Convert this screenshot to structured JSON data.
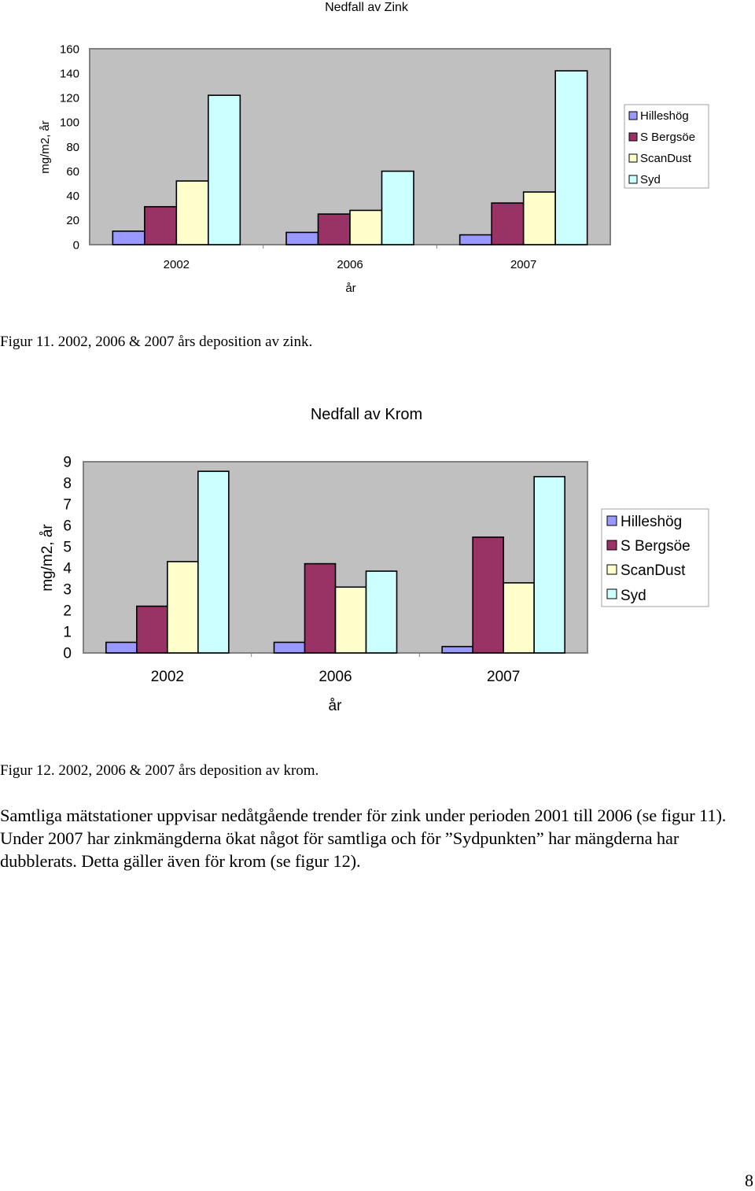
{
  "colors": {
    "series": [
      "#9999ff",
      "#993366",
      "#ffffcc",
      "#ccffff"
    ],
    "plot_background": "#c0c0c0"
  },
  "chart_data": [
    {
      "type": "bar",
      "title": "Nedfall av Zink",
      "xlabel": "år",
      "ylabel": "mg/m2, år",
      "categories": [
        "2002",
        "2006",
        "2007"
      ],
      "ylim": [
        0,
        160
      ],
      "yticks": [
        "0",
        "20",
        "40",
        "60",
        "80",
        "100",
        "120",
        "140",
        "160"
      ],
      "grid": false,
      "legend": "right",
      "series": [
        {
          "name": "Hilleshög",
          "values": [
            11,
            10,
            8
          ]
        },
        {
          "name": "S Bergsöe",
          "values": [
            31,
            25,
            34
          ]
        },
        {
          "name": "ScanDust",
          "values": [
            52,
            28,
            43
          ]
        },
        {
          "name": "Syd",
          "values": [
            122,
            60,
            142
          ]
        }
      ]
    },
    {
      "type": "bar",
      "title": "Nedfall av Krom",
      "xlabel": "år",
      "ylabel": "mg/m2, år",
      "categories": [
        "2002",
        "2006",
        "2007"
      ],
      "ylim": [
        0,
        9
      ],
      "yticks": [
        "0",
        "1",
        "2",
        "3",
        "4",
        "5",
        "6",
        "7",
        "8",
        "9"
      ],
      "grid": false,
      "legend": "right",
      "series": [
        {
          "name": "Hilleshög",
          "values": [
            0.5,
            0.5,
            0.3
          ]
        },
        {
          "name": "S Bergsöe",
          "values": [
            2.2,
            4.2,
            5.45
          ]
        },
        {
          "name": "ScanDust",
          "values": [
            4.3,
            3.1,
            3.3
          ]
        },
        {
          "name": "Syd",
          "values": [
            8.55,
            3.85,
            8.3
          ]
        }
      ]
    }
  ],
  "captions": {
    "fig11": "Figur 11. 2002, 2006 & 2007 års deposition av zink.",
    "fig12": "Figur 12. 2002, 2006 & 2007 års deposition av krom."
  },
  "paragraph": "Samtliga mätstationer uppvisar nedåtgående trender för zink under perioden 2001 till 2006 (se figur 11). Under 2007 har zinkmängderna ökat något för samtliga och för ”Sydpunkten” har mängderna har dubblerats. Detta gäller även för krom (se figur 12).",
  "page_number": "8"
}
